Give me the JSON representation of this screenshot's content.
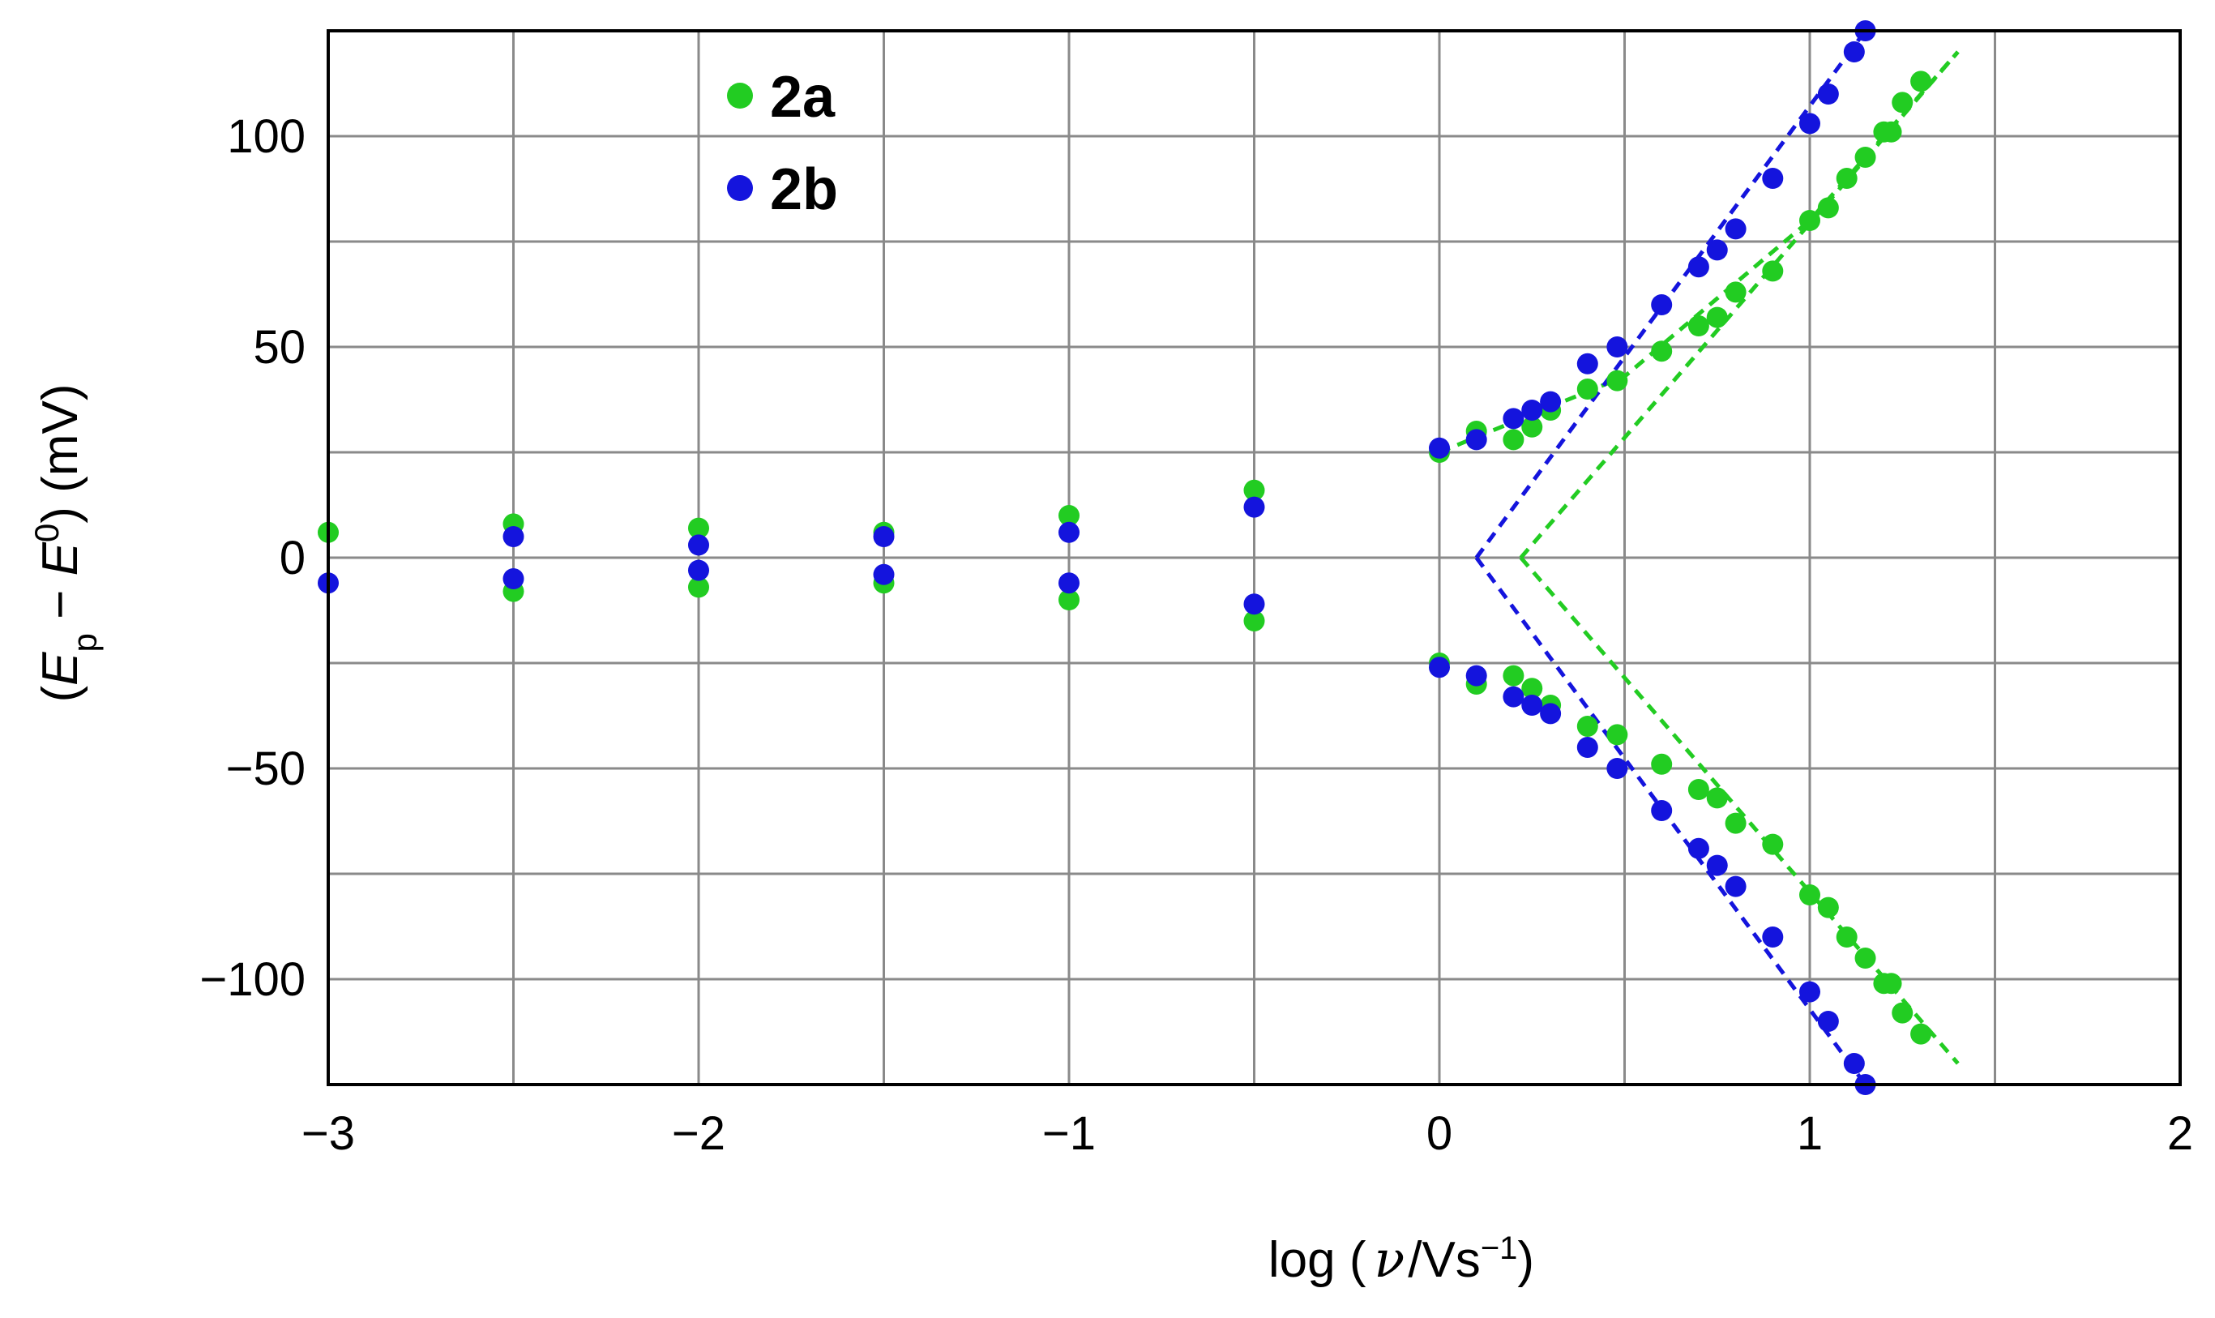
{
  "chart_data": {
    "type": "scatter",
    "xlim": [
      -3,
      2
    ],
    "ylim": [
      -125,
      125
    ],
    "grid": true,
    "legend_position": "top-left",
    "x_ticks": [
      {
        "value": -3,
        "label": "−3"
      },
      {
        "value": -2,
        "label": "−2"
      },
      {
        "value": -1,
        "label": "−1"
      },
      {
        "value": 0,
        "label": "0"
      },
      {
        "value": 1,
        "label": "1"
      },
      {
        "value": 2,
        "label": "2"
      }
    ],
    "y_ticks": [
      {
        "value": 100,
        "label": "100"
      },
      {
        "value": 50,
        "label": "50"
      },
      {
        "value": 0,
        "label": "0"
      },
      {
        "value": -50,
        "label": "−50"
      },
      {
        "value": -100,
        "label": "−100"
      }
    ],
    "xlabel": {
      "prefix": "log (",
      "nu": "ν",
      "unit": "/Vs",
      "sup": "−1",
      "suffix": ")"
    },
    "ylabel": {
      "open": "(",
      "e": "E",
      "p": "p",
      "minus": " − ",
      "zero": "0",
      "close": ") (mV)"
    },
    "series": [
      {
        "name": "2a",
        "color": "#22cc22",
        "points": [
          [
            -3,
            6
          ],
          [
            -2.5,
            8
          ],
          [
            -2.5,
            -8
          ],
          [
            -2,
            7
          ],
          [
            -2,
            -7
          ],
          [
            -1.5,
            6
          ],
          [
            -1.5,
            -6
          ],
          [
            -1,
            10
          ],
          [
            -1,
            -10
          ],
          [
            -0.5,
            16
          ],
          [
            -0.5,
            -15
          ],
          [
            0,
            25
          ],
          [
            0,
            -25
          ],
          [
            0.1,
            30
          ],
          [
            0.1,
            -30
          ],
          [
            0.2,
            28
          ],
          [
            0.2,
            -28
          ],
          [
            0.25,
            31
          ],
          [
            0.25,
            -31
          ],
          [
            0.3,
            35
          ],
          [
            0.3,
            -35
          ],
          [
            0.4,
            40
          ],
          [
            0.4,
            -40
          ],
          [
            0.48,
            42
          ],
          [
            0.48,
            -42
          ],
          [
            0.6,
            49
          ],
          [
            0.6,
            -49
          ],
          [
            0.7,
            55
          ],
          [
            0.7,
            -55
          ],
          [
            0.75,
            57
          ],
          [
            0.75,
            -57
          ],
          [
            0.8,
            63
          ],
          [
            0.8,
            -63
          ],
          [
            0.9,
            68
          ],
          [
            0.9,
            -68
          ],
          [
            1.0,
            80
          ],
          [
            1.0,
            -80
          ],
          [
            1.05,
            83
          ],
          [
            1.05,
            -83
          ],
          [
            1.1,
            90
          ],
          [
            1.1,
            -90
          ],
          [
            1.15,
            95
          ],
          [
            1.15,
            -95
          ],
          [
            1.2,
            101
          ],
          [
            1.2,
            -101
          ],
          [
            1.22,
            101
          ],
          [
            1.22,
            -101
          ],
          [
            1.25,
            108
          ],
          [
            1.25,
            -108
          ],
          [
            1.3,
            113
          ],
          [
            1.3,
            -113
          ]
        ]
      },
      {
        "name": "2b",
        "color": "#1414dd",
        "points": [
          [
            -3,
            -6
          ],
          [
            -2.5,
            5
          ],
          [
            -2.5,
            -5
          ],
          [
            -2,
            3
          ],
          [
            -2,
            -3
          ],
          [
            -1.5,
            5
          ],
          [
            -1.5,
            -4
          ],
          [
            -1,
            6
          ],
          [
            -1,
            -6
          ],
          [
            -0.5,
            12
          ],
          [
            -0.5,
            -11
          ],
          [
            0,
            26
          ],
          [
            0,
            -26
          ],
          [
            0.1,
            28
          ],
          [
            0.1,
            -28
          ],
          [
            0.2,
            33
          ],
          [
            0.2,
            -33
          ],
          [
            0.25,
            35
          ],
          [
            0.25,
            -35
          ],
          [
            0.3,
            37
          ],
          [
            0.3,
            -37
          ],
          [
            0.4,
            46
          ],
          [
            0.4,
            -45
          ],
          [
            0.48,
            50
          ],
          [
            0.48,
            -50
          ],
          [
            0.6,
            60
          ],
          [
            0.6,
            -60
          ],
          [
            0.7,
            69
          ],
          [
            0.7,
            -69
          ],
          [
            0.75,
            73
          ],
          [
            0.75,
            -73
          ],
          [
            0.8,
            78
          ],
          [
            0.8,
            -78
          ],
          [
            0.9,
            90
          ],
          [
            0.9,
            -90
          ],
          [
            1.0,
            103
          ],
          [
            1.0,
            -103
          ],
          [
            1.05,
            110
          ],
          [
            1.05,
            -110
          ],
          [
            1.12,
            120
          ],
          [
            1.12,
            -120
          ],
          [
            1.15,
            125
          ],
          [
            1.15,
            -125
          ]
        ]
      }
    ],
    "fit_lines": [
      {
        "series": "2a",
        "color": "#22cc22",
        "points": [
          [
            0,
            25
          ],
          [
            0.5,
            43
          ],
          [
            1.0,
            80
          ],
          [
            1.4,
            120
          ]
        ]
      },
      {
        "series": "2a",
        "color": "#22cc22",
        "points": [
          [
            0.22,
            0
          ],
          [
            1.4,
            120
          ]
        ]
      },
      {
        "series": "2a",
        "color": "#22cc22",
        "points": [
          [
            0.22,
            0
          ],
          [
            1.4,
            -120
          ]
        ]
      },
      {
        "series": "2b",
        "color": "#1414dd",
        "points": [
          [
            0.1,
            0
          ],
          [
            1.15,
            125
          ]
        ]
      },
      {
        "series": "2b",
        "color": "#1414dd",
        "points": [
          [
            0.1,
            0
          ],
          [
            1.15,
            -125
          ]
        ]
      }
    ],
    "legend": [
      {
        "label": "2a",
        "color": "#22cc22"
      },
      {
        "label": "2b",
        "color": "#1414dd"
      }
    ]
  }
}
